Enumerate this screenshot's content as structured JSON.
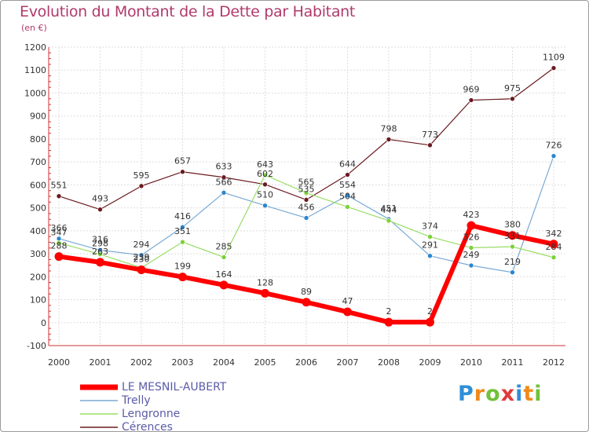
{
  "title": "Evolution du Montant de la Dette par Habitant",
  "subtitle": "(en €)",
  "logo_text": "Proxiti",
  "colors": {
    "title": "#b03a6a",
    "legend_text": "#5b5ba8"
  },
  "chart_data": {
    "type": "line",
    "x": [
      "2000",
      "2001",
      "2002",
      "2003",
      "2004",
      "2005",
      "2006",
      "2007",
      "2008",
      "2009",
      "2010",
      "2011",
      "2012"
    ],
    "ylim": [
      -100,
      1200
    ],
    "yticks": [
      -100,
      0,
      100,
      200,
      300,
      400,
      500,
      600,
      700,
      800,
      900,
      1000,
      1100,
      1200
    ],
    "grid": true,
    "legend_position": "bottom-left",
    "series": [
      {
        "name": "Cérences",
        "color": "#6b1a20",
        "dot": "#6b1a20",
        "values": [
          551,
          493,
          595,
          657,
          633,
          602,
          535,
          644,
          798,
          773,
          969,
          975,
          1109
        ]
      },
      {
        "name": "Trelly",
        "color": "#7aaad4",
        "dot": "#2a86cf",
        "values": [
          366,
          316,
          294,
          416,
          566,
          510,
          456,
          554,
          451,
          291,
          249,
          219,
          726
        ]
      },
      {
        "name": "Lengronne",
        "color": "#99dd66",
        "dot": "#7cd13a",
        "values": [
          347,
          298,
          239,
          351,
          285,
          643,
          565,
          504,
          444,
          374,
          326,
          331,
          284
        ]
      },
      {
        "name": "LE MESNIL-AUBERT",
        "color": "#ff0000",
        "dot": "#ff0000",
        "values": [
          288,
          263,
          230,
          199,
          164,
          128,
          89,
          47,
          2,
          2,
          423,
          380,
          342
        ]
      }
    ],
    "data_labels": [
      {
        "series": "Cérences",
        "labels": [
          "551",
          "493",
          "595",
          "657",
          "633",
          "602",
          "535",
          "644",
          "798",
          "773",
          "969",
          "975",
          "1109"
        ]
      },
      {
        "series": "Trelly",
        "labels": [
          "366",
          "316",
          "294",
          "416",
          "566",
          "510",
          "456",
          "554",
          "451",
          "291",
          "249",
          "219",
          "726"
        ]
      },
      {
        "series": "Lengronne",
        "labels": [
          "347",
          "298",
          "239",
          "351",
          "285",
          "643",
          "565",
          "504",
          "444",
          "374",
          "326",
          "331",
          "284"
        ]
      },
      {
        "series": "LE MESNIL-AUBERT",
        "labels": [
          "288",
          "263",
          "230",
          "199",
          "164",
          "128",
          "89",
          "47",
          "2",
          "2",
          "423",
          "380",
          "342"
        ]
      }
    ],
    "legend_order": [
      "LE MESNIL-AUBERT",
      "Trelly",
      "Lengronne",
      "Cérences"
    ]
  }
}
